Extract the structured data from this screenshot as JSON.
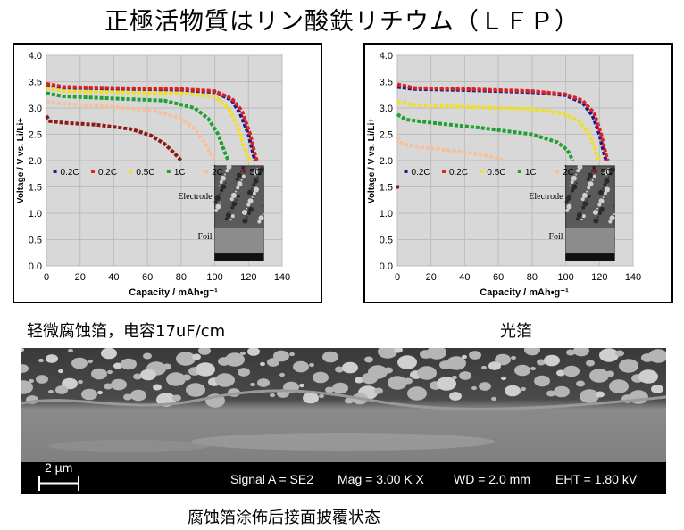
{
  "header": {
    "title": "正極活物質はリン酸鉄リチウム（ＬＦＰ）"
  },
  "captions": {
    "left": "轻微腐蚀箔，电容17uF/cm",
    "right": "光箔",
    "bottom": "腐蚀箔涂佈后接面披覆状态"
  },
  "sem_bar": {
    "scale": "2 µm",
    "signal": "Signal A = SE2",
    "mag": "Mag =   3.00 K X",
    "wd": "WD =  2.0 mm",
    "eht": "EHT =  1.80 kV"
  },
  "inset_labels": {
    "electrode": "Electrode",
    "foil": "Foil"
  },
  "colors": {
    "0.2C_a": "#1a1a8c",
    "0.2C_b": "#e02020",
    "0.5C": "#f0e020",
    "1C": "#20a030",
    "2C": "#f5c09a",
    "5C": "#8a1a1a"
  },
  "chart_data": [
    {
      "type": "line",
      "xlabel": "Capacity / mAh•g⁻¹",
      "ylabel": "Voltage / V vs. Li/Li+",
      "xlim": [
        0,
        140
      ],
      "ylim": [
        0.0,
        4.0
      ],
      "xticks": [
        "0",
        "20",
        "40",
        "60",
        "80",
        "100",
        "120",
        "140"
      ],
      "yticks": [
        "0.0",
        "0.5",
        "1.0",
        "1.5",
        "2.0",
        "2.5",
        "3.0",
        "3.5",
        "4.0"
      ],
      "grid": true,
      "legend": [
        "0.2C",
        "0.2C",
        "0.5C",
        "1C",
        "2C",
        "5C"
      ],
      "series": [
        {
          "name": "0.2C",
          "color": "#1a1a8c",
          "x": [
            0,
            10,
            40,
            80,
            100,
            110,
            115,
            120,
            123,
            124
          ],
          "y": [
            3.42,
            3.38,
            3.36,
            3.34,
            3.3,
            3.15,
            2.9,
            2.5,
            2.1,
            2.0
          ]
        },
        {
          "name": "0.2C",
          "color": "#e02020",
          "x": [
            0,
            10,
            40,
            80,
            100,
            110,
            116,
            121,
            124,
            125
          ],
          "y": [
            3.46,
            3.4,
            3.38,
            3.36,
            3.32,
            3.18,
            2.95,
            2.5,
            2.1,
            2.0
          ]
        },
        {
          "name": "0.5C",
          "color": "#f0e020",
          "x": [
            0,
            10,
            40,
            80,
            100,
            108,
            113,
            117,
            120,
            121
          ],
          "y": [
            3.38,
            3.32,
            3.3,
            3.28,
            3.22,
            3.0,
            2.7,
            2.3,
            2.05,
            2.0
          ]
        },
        {
          "name": "1C",
          "color": "#20a030",
          "x": [
            0,
            10,
            40,
            70,
            88,
            96,
            102,
            106,
            108
          ],
          "y": [
            3.28,
            3.22,
            3.18,
            3.14,
            3.0,
            2.8,
            2.5,
            2.15,
            2.0
          ]
        },
        {
          "name": "2C",
          "color": "#f5c09a",
          "x": [
            0,
            10,
            40,
            65,
            80,
            88,
            94,
            98,
            100
          ],
          "y": [
            3.12,
            3.08,
            3.02,
            2.94,
            2.8,
            2.6,
            2.35,
            2.1,
            2.0
          ]
        },
        {
          "name": "5C",
          "color": "#8a1a1a",
          "x": [
            0,
            2,
            10,
            30,
            50,
            62,
            70,
            76,
            80
          ],
          "y": [
            2.85,
            2.75,
            2.72,
            2.68,
            2.6,
            2.48,
            2.32,
            2.14,
            2.0
          ]
        }
      ]
    },
    {
      "type": "line",
      "xlabel": "Capacity / mAh•g⁻¹",
      "ylabel": "Voltage / V vs. Li/Li+",
      "xlim": [
        0,
        140
      ],
      "ylim": [
        0.0,
        4.0
      ],
      "xticks": [
        "0",
        "20",
        "40",
        "60",
        "80",
        "100",
        "120",
        "140"
      ],
      "yticks": [
        "0.0",
        "0.5",
        "1.0",
        "1.5",
        "2.0",
        "2.5",
        "3.0",
        "3.5",
        "4.0"
      ],
      "grid": true,
      "legend": [
        "0.2C",
        "0.2C",
        "0.5C",
        "1C",
        "2C",
        "5C"
      ],
      "series": [
        {
          "name": "0.2C",
          "color": "#1a1a8c",
          "x": [
            0,
            10,
            40,
            80,
            100,
            110,
            116,
            120,
            123,
            124
          ],
          "y": [
            3.4,
            3.36,
            3.34,
            3.3,
            3.24,
            3.1,
            2.85,
            2.5,
            2.1,
            2.0
          ]
        },
        {
          "name": "0.2C",
          "color": "#e02020",
          "x": [
            0,
            10,
            40,
            80,
            100,
            110,
            117,
            121,
            124,
            125
          ],
          "y": [
            3.45,
            3.38,
            3.36,
            3.32,
            3.26,
            3.14,
            2.9,
            2.5,
            2.1,
            2.0
          ]
        },
        {
          "name": "0.5C",
          "color": "#f0e020",
          "x": [
            0,
            10,
            40,
            80,
            98,
            108,
            114,
            117,
            119,
            120
          ],
          "y": [
            3.12,
            3.06,
            3.02,
            2.98,
            2.9,
            2.75,
            2.5,
            2.25,
            2.05,
            2.0
          ]
        },
        {
          "name": "1C",
          "color": "#20a030",
          "x": [
            0,
            5,
            20,
            50,
            80,
            95,
            101,
            103,
            104
          ],
          "y": [
            2.88,
            2.78,
            2.72,
            2.62,
            2.5,
            2.35,
            2.2,
            2.08,
            2.0
          ]
        },
        {
          "name": "2C",
          "color": "#f5c09a",
          "x": [
            0,
            3,
            15,
            35,
            52,
            60,
            63
          ],
          "y": [
            2.45,
            2.32,
            2.25,
            2.18,
            2.1,
            2.04,
            2.0
          ]
        },
        {
          "name": "5C",
          "color": "#8a1a1a",
          "x": [
            0
          ],
          "y": [
            1.5
          ]
        }
      ]
    }
  ]
}
